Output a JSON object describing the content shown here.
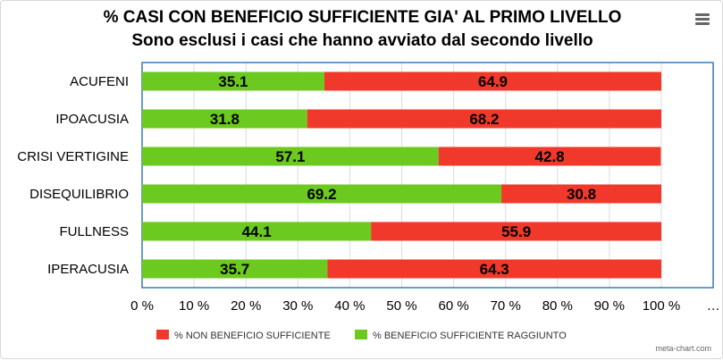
{
  "title": "% CASI CON BENEFICIO SUFFICIENTE GIA' AL PRIMO LIVELLO",
  "subtitle": "Sono esclusi i casi che hanno avviato dal secondo livello",
  "credit": "meta-chart.com",
  "menu_icon": "hamburger-menu-icon",
  "colors": {
    "green": "#6cc91f",
    "red": "#f0392b",
    "grid": "#dcdcdc",
    "plot_border": "#3a7ab8"
  },
  "chart_data": {
    "type": "bar",
    "orientation": "horizontal",
    "stacked": true,
    "categories": [
      "ACUFENI",
      "IPOACUSIA",
      "CRISI VERTIGINE",
      "DISEQUILIBRIO",
      "FULLNESS",
      "IPERACUSIA"
    ],
    "series": [
      {
        "name": "% BENEFICIO SUFFICIENTE RAGGIUNTO",
        "color": "#6cc91f",
        "values": [
          35.1,
          31.8,
          57.1,
          69.2,
          44.1,
          35.7
        ]
      },
      {
        "name": "% NON BENEFICIO SUFFICIENTE",
        "color": "#f0392b",
        "values": [
          64.9,
          68.2,
          42.8,
          30.8,
          55.9,
          64.3
        ]
      }
    ],
    "legend_order": [
      1,
      0
    ],
    "xlim": [
      0,
      110
    ],
    "x_ticks": [
      "0 %",
      "10 %",
      "20 %",
      "30 %",
      "40 %",
      "50 %",
      "60 %",
      "70 %",
      "80 %",
      "90 %",
      "100 %",
      "…"
    ],
    "grid": true,
    "legend_position": "bottom"
  }
}
